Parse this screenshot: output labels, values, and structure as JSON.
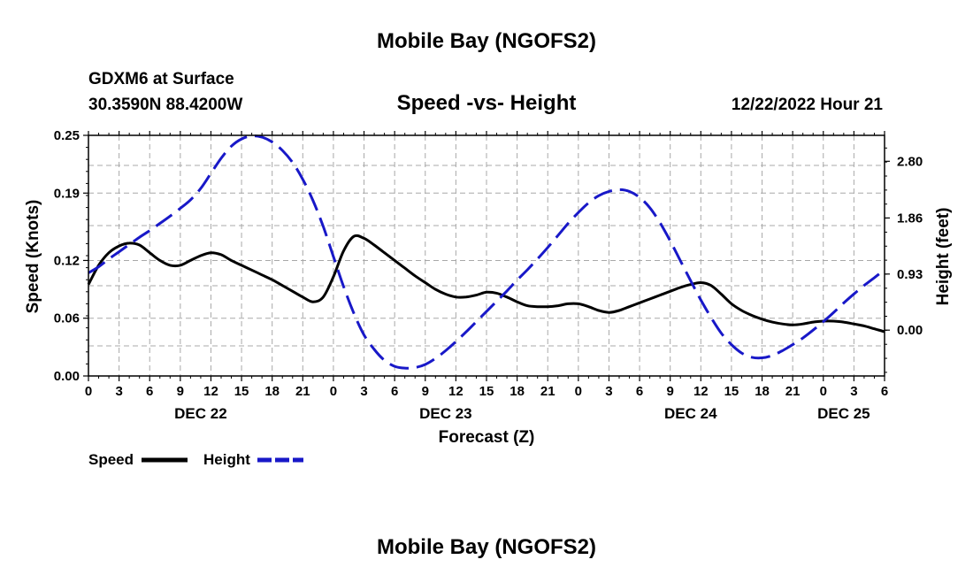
{
  "page": {
    "top_title": "Mobile Bay (NGOFS2)",
    "bottom_title": "Mobile Bay (NGOFS2)"
  },
  "header": {
    "station": "GDXM6 at Surface",
    "coords": "30.3590N  88.4200W",
    "subtitle": "Speed -vs- Height",
    "date": "12/22/2022 Hour 21"
  },
  "chart_data": {
    "type": "line",
    "title": "Speed -vs- Height",
    "xlabel": "Forecast (Z)",
    "ylabel": "Speed (Knots)",
    "y2label": "Height (feet)",
    "x_unit": "hours from 2022-12-22 00Z",
    "xlim": [
      0,
      78
    ],
    "ylim": [
      0.0,
      0.25
    ],
    "y2lim": [
      -0.76,
      3.23
    ],
    "grid": true,
    "x_ticks": [
      0,
      3,
      6,
      9,
      12,
      15,
      18,
      21,
      24,
      27,
      30,
      33,
      36,
      39,
      42,
      45,
      48,
      51,
      54,
      57,
      60,
      63,
      66,
      69,
      72,
      75,
      78
    ],
    "x_tick_labels": [
      "0",
      "3",
      "6",
      "9",
      "12",
      "15",
      "18",
      "21",
      "0",
      "3",
      "6",
      "9",
      "12",
      "15",
      "18",
      "21",
      "0",
      "3",
      "6",
      "9",
      "12",
      "15",
      "18",
      "21",
      "0",
      "3",
      "6"
    ],
    "date_labels": [
      {
        "x": 11,
        "label": "DEC 22"
      },
      {
        "x": 35,
        "label": "DEC 23"
      },
      {
        "x": 59,
        "label": "DEC 24"
      },
      {
        "x": 74,
        "label": "DEC 25"
      }
    ],
    "y_ticks": [
      0.0,
      0.06,
      0.12,
      0.19,
      0.25
    ],
    "y_tick_labels": [
      "0.00",
      "0.06",
      "0.12",
      "0.19",
      "0.25"
    ],
    "y2_ticks": [
      0.0,
      0.93,
      1.86,
      2.8
    ],
    "y2_tick_labels": [
      "0.00",
      "0.93",
      "1.86",
      "2.80"
    ],
    "legend": [
      {
        "name": "Speed",
        "color": "#000000",
        "style": "solid"
      },
      {
        "name": "Height",
        "color": "#1818c8",
        "style": "dashed"
      }
    ],
    "series": [
      {
        "name": "Speed",
        "axis": "left",
        "color": "#000000",
        "points": [
          [
            0,
            0.095
          ],
          [
            1,
            0.115
          ],
          [
            2,
            0.128
          ],
          [
            3,
            0.135
          ],
          [
            4,
            0.138
          ],
          [
            5,
            0.136
          ],
          [
            6,
            0.128
          ],
          [
            7,
            0.12
          ],
          [
            8,
            0.115
          ],
          [
            9,
            0.115
          ],
          [
            10,
            0.12
          ],
          [
            11,
            0.125
          ],
          [
            12,
            0.128
          ],
          [
            13,
            0.126
          ],
          [
            14,
            0.12
          ],
          [
            15,
            0.115
          ],
          [
            16,
            0.11
          ],
          [
            17,
            0.105
          ],
          [
            18,
            0.1
          ],
          [
            19,
            0.094
          ],
          [
            20,
            0.088
          ],
          [
            21,
            0.082
          ],
          [
            22,
            0.077
          ],
          [
            23,
            0.082
          ],
          [
            24,
            0.103
          ],
          [
            25,
            0.13
          ],
          [
            26,
            0.145
          ],
          [
            27,
            0.143
          ],
          [
            28,
            0.136
          ],
          [
            29,
            0.128
          ],
          [
            30,
            0.12
          ],
          [
            31,
            0.112
          ],
          [
            32,
            0.104
          ],
          [
            33,
            0.097
          ],
          [
            34,
            0.09
          ],
          [
            35,
            0.085
          ],
          [
            36,
            0.082
          ],
          [
            37,
            0.082
          ],
          [
            38,
            0.084
          ],
          [
            39,
            0.087
          ],
          [
            40,
            0.086
          ],
          [
            41,
            0.082
          ],
          [
            42,
            0.077
          ],
          [
            43,
            0.073
          ],
          [
            44,
            0.072
          ],
          [
            45,
            0.072
          ],
          [
            46,
            0.073
          ],
          [
            47,
            0.075
          ],
          [
            48,
            0.075
          ],
          [
            49,
            0.072
          ],
          [
            50,
            0.068
          ],
          [
            51,
            0.066
          ],
          [
            52,
            0.068
          ],
          [
            53,
            0.072
          ],
          [
            54,
            0.076
          ],
          [
            55,
            0.08
          ],
          [
            56,
            0.084
          ],
          [
            57,
            0.088
          ],
          [
            58,
            0.092
          ],
          [
            59,
            0.095
          ],
          [
            60,
            0.097
          ],
          [
            61,
            0.094
          ],
          [
            62,
            0.085
          ],
          [
            63,
            0.075
          ],
          [
            64,
            0.068
          ],
          [
            65,
            0.063
          ],
          [
            66,
            0.059
          ],
          [
            67,
            0.056
          ],
          [
            68,
            0.054
          ],
          [
            69,
            0.053
          ],
          [
            70,
            0.054
          ],
          [
            71,
            0.056
          ],
          [
            72,
            0.057
          ],
          [
            73,
            0.057
          ],
          [
            74,
            0.056
          ],
          [
            75,
            0.054
          ],
          [
            76,
            0.052
          ],
          [
            77,
            0.049
          ],
          [
            78,
            0.046
          ]
        ]
      },
      {
        "name": "Height",
        "axis": "right",
        "color": "#1818c8",
        "points": [
          [
            0,
            0.95
          ],
          [
            1,
            1.05
          ],
          [
            2,
            1.18
          ],
          [
            3,
            1.3
          ],
          [
            4,
            1.42
          ],
          [
            5,
            1.54
          ],
          [
            6,
            1.65
          ],
          [
            7,
            1.77
          ],
          [
            8,
            1.89
          ],
          [
            9,
            2.02
          ],
          [
            10,
            2.16
          ],
          [
            11,
            2.35
          ],
          [
            12,
            2.6
          ],
          [
            13,
            2.85
          ],
          [
            14,
            3.05
          ],
          [
            15,
            3.17
          ],
          [
            16,
            3.22
          ],
          [
            17,
            3.2
          ],
          [
            18,
            3.12
          ],
          [
            19,
            2.98
          ],
          [
            20,
            2.78
          ],
          [
            21,
            2.5
          ],
          [
            22,
            2.15
          ],
          [
            23,
            1.72
          ],
          [
            24,
            1.22
          ],
          [
            25,
            0.72
          ],
          [
            26,
            0.28
          ],
          [
            27,
            -0.08
          ],
          [
            28,
            -0.32
          ],
          [
            29,
            -0.5
          ],
          [
            30,
            -0.6
          ],
          [
            31,
            -0.63
          ],
          [
            32,
            -0.62
          ],
          [
            33,
            -0.57
          ],
          [
            34,
            -0.47
          ],
          [
            35,
            -0.34
          ],
          [
            36,
            -0.19
          ],
          [
            37,
            -0.03
          ],
          [
            38,
            0.14
          ],
          [
            39,
            0.31
          ],
          [
            40,
            0.48
          ],
          [
            41,
            0.65
          ],
          [
            42,
            0.83
          ],
          [
            43,
            1.0
          ],
          [
            44,
            1.18
          ],
          [
            45,
            1.37
          ],
          [
            46,
            1.57
          ],
          [
            47,
            1.77
          ],
          [
            48,
            1.95
          ],
          [
            49,
            2.11
          ],
          [
            50,
            2.23
          ],
          [
            51,
            2.3
          ],
          [
            52,
            2.33
          ],
          [
            53,
            2.3
          ],
          [
            54,
            2.2
          ],
          [
            55,
            2.03
          ],
          [
            56,
            1.78
          ],
          [
            57,
            1.48
          ],
          [
            58,
            1.15
          ],
          [
            59,
            0.82
          ],
          [
            60,
            0.5
          ],
          [
            61,
            0.21
          ],
          [
            62,
            -0.05
          ],
          [
            63,
            -0.24
          ],
          [
            64,
            -0.38
          ],
          [
            65,
            -0.45
          ],
          [
            66,
            -0.46
          ],
          [
            67,
            -0.42
          ],
          [
            68,
            -0.34
          ],
          [
            69,
            -0.24
          ],
          [
            70,
            -0.13
          ],
          [
            71,
            0.0
          ],
          [
            72,
            0.14
          ],
          [
            73,
            0.29
          ],
          [
            74,
            0.45
          ],
          [
            75,
            0.6
          ],
          [
            76,
            0.74
          ],
          [
            77,
            0.87
          ],
          [
            78,
            1.0
          ]
        ]
      }
    ]
  }
}
